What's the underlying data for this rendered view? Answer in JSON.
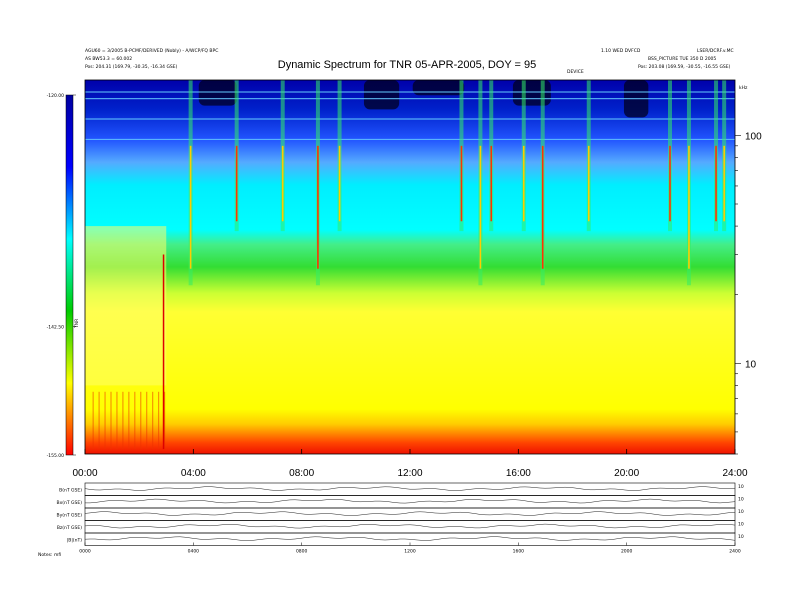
{
  "header": {
    "title": "Dynamic Spectrum for TNR 05-APR-2005, DOY = 95",
    "left_line1": "AGU60 = 3/2005 B-PCMF/DERIVED (Nobly) - A/WCP/FQ BPC",
    "left_line2": "AS BW53.3 = 60.002",
    "left_line3": "Pos:   204.31 (169.79, -30.35, -16.34 GSE)",
    "right_line1": "1.10 WED DVFCD",
    "right_line2": "LSER/DCRF.v.MC",
    "right_line3": "BSS_PICTURE TUE 350 D 2005",
    "right_line4": "Pos:   203.08 (169.59, -30.55, -16.55 GSE)",
    "corner_label": "DEVICE"
  },
  "chart_data": [
    {
      "type": "heatmap",
      "title": "Dynamic Spectrum for TNR 05-APR-2005, DOY = 95",
      "x_tick_labels": [
        "00:00",
        "04:00",
        "08:00",
        "12:00",
        "16:00",
        "20:00",
        "24:00"
      ],
      "x_range_hours": [
        0,
        24
      ],
      "y_scale": "log",
      "y_range_khz": [
        4,
        175
      ],
      "y_unit_label": "kHz",
      "y_tick_labels": [
        "100",
        "10"
      ],
      "y_tick_values": [
        100,
        10
      ],
      "colorbar": {
        "label": "TNR",
        "tick_labels": [
          "-120.00",
          "-142.50",
          "-155.00"
        ],
        "tick_values": [
          -120,
          -142.5,
          -155
        ],
        "range": [
          -155,
          -120
        ],
        "colors": [
          "#0000a0",
          "#0000ff",
          "#00ffff",
          "#00cc00",
          "#ffff00",
          "#ff0000"
        ]
      },
      "bands": [
        {
          "from_khz": 4.0,
          "to_khz": 5.0,
          "level": "red"
        },
        {
          "from_khz": 5.0,
          "to_khz": 8.0,
          "level": "orange-yellow"
        },
        {
          "from_khz": 8.0,
          "to_khz": 25.0,
          "level": "yellow"
        },
        {
          "from_khz": 25.0,
          "to_khz": 38.0,
          "level": "green"
        },
        {
          "from_khz": 38.0,
          "to_khz": 90.0,
          "level": "cyan"
        },
        {
          "from_khz": 90.0,
          "to_khz": 175.0,
          "level": "blue"
        }
      ],
      "bursts_hours": [
        3.9,
        5.6,
        7.3,
        8.6,
        9.4,
        13.9,
        14.6,
        15.0,
        16.2,
        16.9,
        18.6,
        21.6,
        22.3,
        23.3,
        23.6
      ]
    },
    {
      "type": "line",
      "title": "",
      "x_tick_labels": [
        "0000",
        "0400",
        "0800",
        "1200",
        "1600",
        "2000",
        "2400"
      ],
      "series": [
        {
          "name": "B(nT GSE)",
          "right_label": "10"
        },
        {
          "name": "Bx(nT GSE)",
          "right_label": "10"
        },
        {
          "name": "By(nT GSE)",
          "right_label": "10"
        },
        {
          "name": "Bz(nT GSE)",
          "right_label": "10"
        },
        {
          "name": "|B|(nT)",
          "right_label": "10"
        }
      ],
      "footer_label": "Notes: mfi"
    }
  ]
}
